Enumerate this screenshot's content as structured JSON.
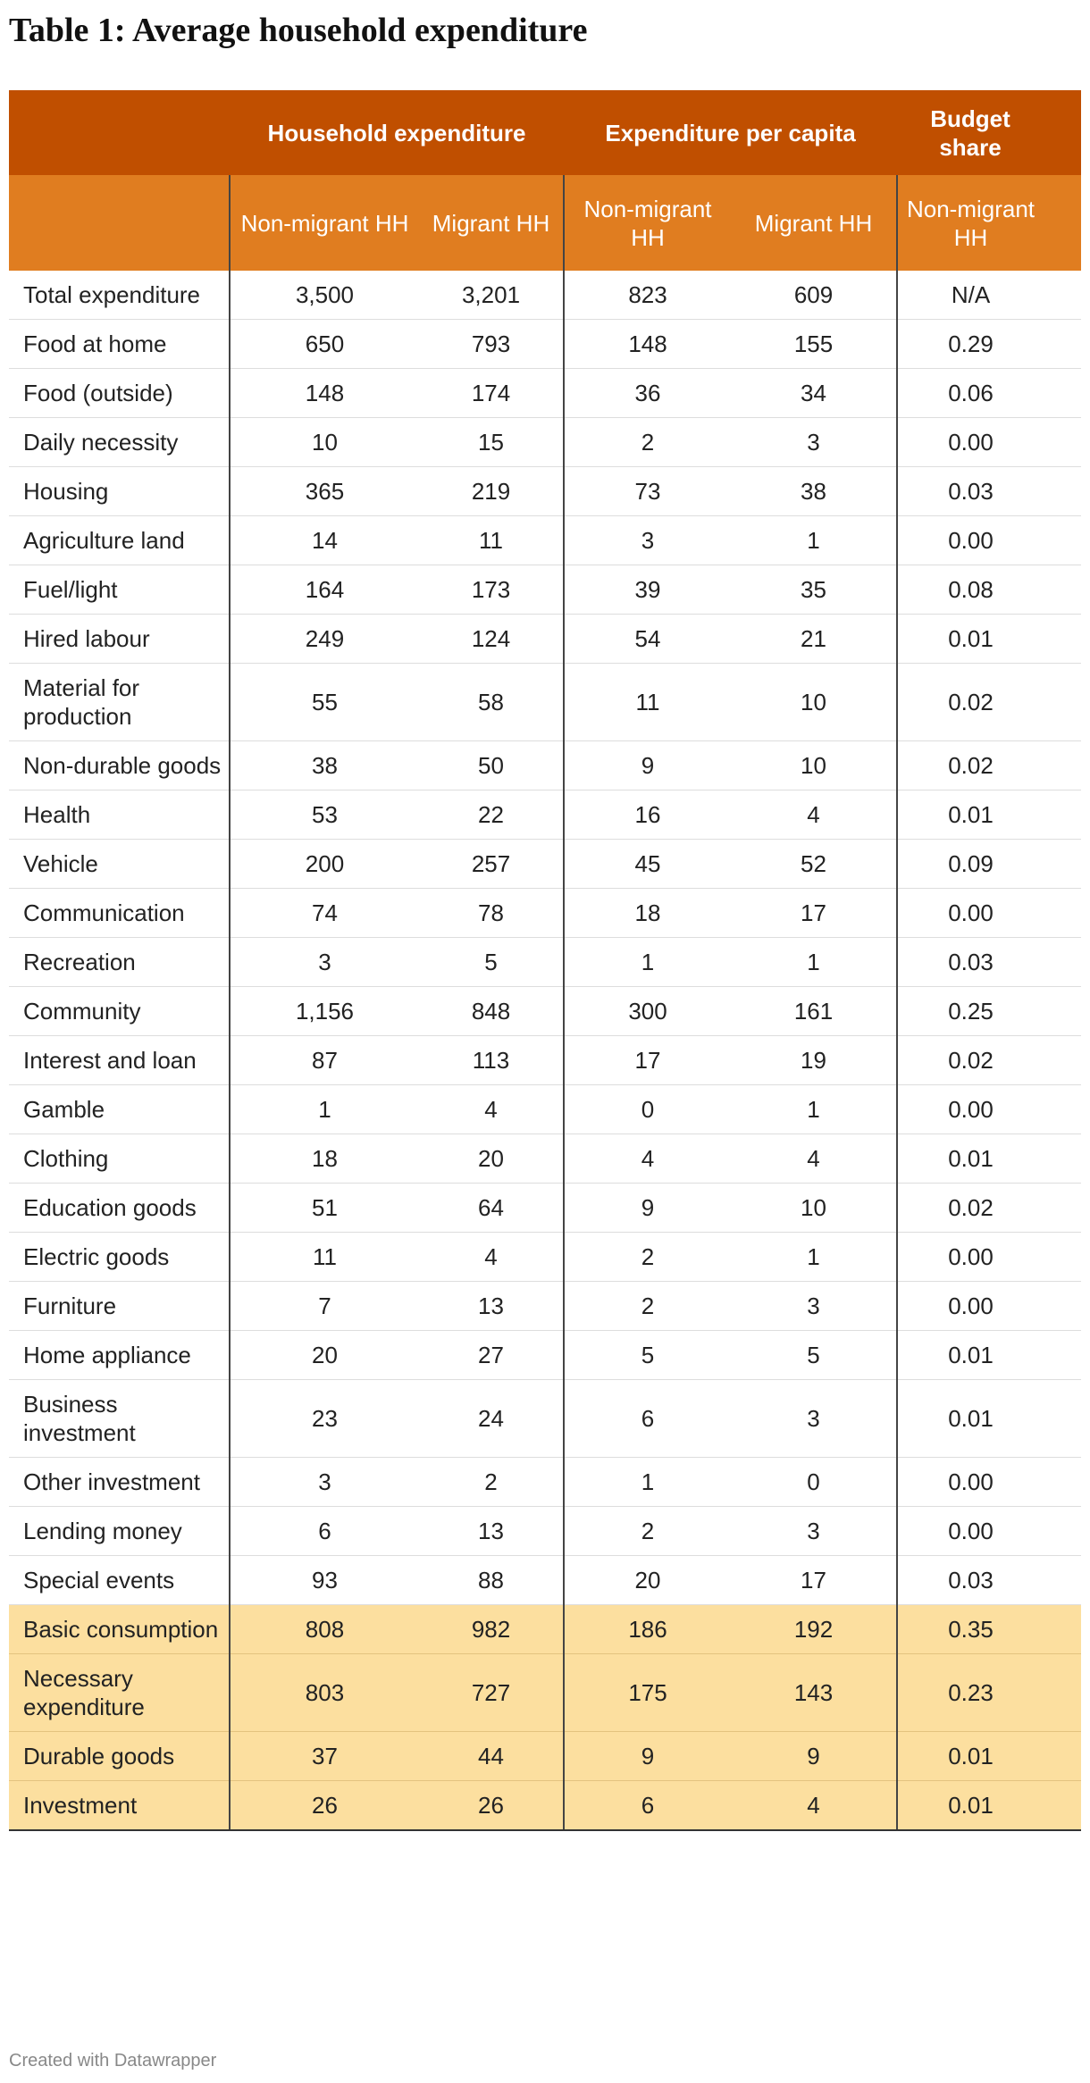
{
  "title": "Table 1: Average household expenditure",
  "table": {
    "groups": [
      "Household expenditure",
      "Expenditure per capita",
      "Budget share"
    ],
    "subheaders": [
      "Non-migrant HH",
      "Migrant HH",
      "Non-migrant HH",
      "Migrant HH",
      "Non-migrant HH"
    ],
    "rows": [
      [
        "Total expenditure",
        "3,500",
        "3,201",
        "823",
        "609",
        "N/A"
      ],
      [
        "Food at home",
        "650",
        "793",
        "148",
        "155",
        "0.29"
      ],
      [
        "Food (outside)",
        "148",
        "174",
        "36",
        "34",
        "0.06"
      ],
      [
        "Daily necessity",
        "10",
        "15",
        "2",
        "3",
        "0.00"
      ],
      [
        "Housing",
        "365",
        "219",
        "73",
        "38",
        "0.03"
      ],
      [
        "Agriculture land",
        "14",
        "11",
        "3",
        "1",
        "0.00"
      ],
      [
        "Fuel/light",
        "164",
        "173",
        "39",
        "35",
        "0.08"
      ],
      [
        "Hired labour",
        "249",
        "124",
        "54",
        "21",
        "0.01"
      ],
      [
        "Material for production",
        "55",
        "58",
        "11",
        "10",
        "0.02"
      ],
      [
        "Non-durable goods",
        "38",
        "50",
        "9",
        "10",
        "0.02"
      ],
      [
        "Health",
        "53",
        "22",
        "16",
        "4",
        "0.01"
      ],
      [
        "Vehicle",
        "200",
        "257",
        "45",
        "52",
        "0.09"
      ],
      [
        "Communication",
        "74",
        "78",
        "18",
        "17",
        "0.00"
      ],
      [
        "Recreation",
        "3",
        "5",
        "1",
        "1",
        "0.03"
      ],
      [
        "Community",
        "1,156",
        "848",
        "300",
        "161",
        "0.25"
      ],
      [
        "Interest and loan",
        "87",
        "113",
        "17",
        "19",
        "0.02"
      ],
      [
        "Gamble",
        "1",
        "4",
        "0",
        "1",
        "0.00"
      ],
      [
        "Clothing",
        "18",
        "20",
        "4",
        "4",
        "0.01"
      ],
      [
        "Education goods",
        "51",
        "64",
        "9",
        "10",
        "0.02"
      ],
      [
        "Electric goods",
        "11",
        "4",
        "2",
        "1",
        "0.00"
      ],
      [
        "Furniture",
        "7",
        "13",
        "2",
        "3",
        "0.00"
      ],
      [
        "Home appliance",
        "20",
        "27",
        "5",
        "5",
        "0.01"
      ],
      [
        "Business investment",
        "23",
        "24",
        "6",
        "3",
        "0.01"
      ],
      [
        "Other investment",
        "3",
        "2",
        "1",
        "0",
        "0.00"
      ],
      [
        "Lending money",
        "6",
        "13",
        "2",
        "3",
        "0.00"
      ],
      [
        "Special events",
        "93",
        "88",
        "20",
        "17",
        "0.03"
      ]
    ],
    "summary_rows": [
      [
        "Basic consumption",
        "808",
        "982",
        "186",
        "192",
        "0.35"
      ],
      [
        "Necessary expenditure",
        "803",
        "727",
        "175",
        "143",
        "0.23"
      ],
      [
        "Durable goods",
        "37",
        "44",
        "9",
        "9",
        "0.01"
      ],
      [
        "Investment",
        "26",
        "26",
        "6",
        "4",
        "0.01"
      ]
    ]
  },
  "footer": "Created with Datawrapper"
}
